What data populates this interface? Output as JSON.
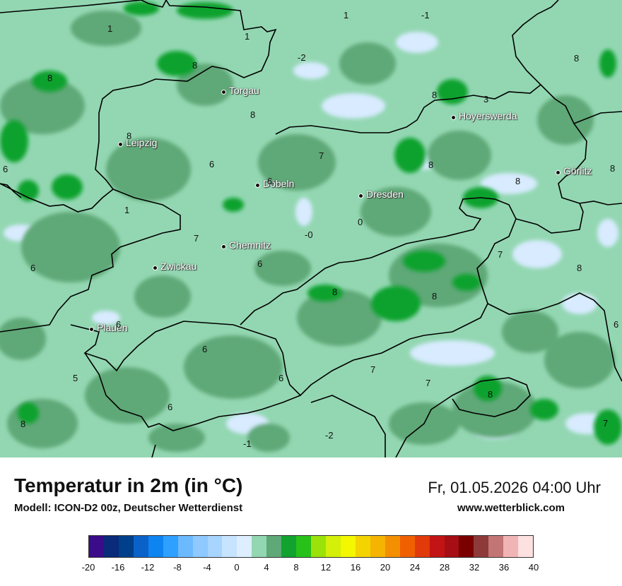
{
  "title": "Temperatur in 2m (in °C)",
  "model": "Modell: ICON-D2 00z, Deutscher Wetterdienst",
  "datetime": "Fr, 01.05.2026 04:00 Uhr",
  "website": "www.wetterblick.com",
  "colors": {
    "base": "#93d7b2",
    "mid_green": "#5fa877",
    "dark_green": "#11a22f",
    "pale_blue": "#d8ebff",
    "border": "#000000"
  },
  "cities": [
    {
      "name": "Torgau"
    },
    {
      "name": "Hoyerswerda"
    },
    {
      "name": "Leipzig"
    },
    {
      "name": "Döbeln"
    },
    {
      "name": "Dresden"
    },
    {
      "name": "Görlitz"
    },
    {
      "name": "Chemnitz"
    },
    {
      "name": "Zwickau"
    },
    {
      "name": "Plauen"
    }
  ],
  "values": [
    "1",
    "1",
    "1",
    "-1",
    "-2",
    "8",
    "8",
    "8",
    "8",
    "3",
    "8",
    "8",
    "8",
    "6",
    "7",
    "6",
    "8",
    "8",
    "6",
    "1",
    "7",
    "0",
    "-0",
    "7",
    "6",
    "6",
    "8",
    "8",
    "8",
    "6",
    "6",
    "6",
    "6",
    "5",
    "7",
    "7",
    "8",
    "6",
    "8",
    "-1",
    "-2",
    "7"
  ],
  "legend": {
    "ticks": [
      "-20",
      "-16",
      "-12",
      "-8",
      "-4",
      "0",
      "4",
      "8",
      "12",
      "16",
      "20",
      "24",
      "28",
      "32",
      "36",
      "40"
    ],
    "colors": [
      "#3a0c8a",
      "#0a2a7a",
      "#003f8a",
      "#0a62c9",
      "#0e84f0",
      "#2ea0ff",
      "#6bb9ff",
      "#8ec9ff",
      "#a7d5ff",
      "#c6e3ff",
      "#ddeeff",
      "#93d7b2",
      "#5fa877",
      "#11a22f",
      "#27c11a",
      "#9be10a",
      "#d3ef0a",
      "#f3f700",
      "#f3d300",
      "#f5b400",
      "#f38f00",
      "#f06000",
      "#e23a0b",
      "#c21414",
      "#a50e14",
      "#7a0000",
      "#8e3a3a",
      "#c27575",
      "#f1b4b4",
      "#fde0e0"
    ]
  }
}
